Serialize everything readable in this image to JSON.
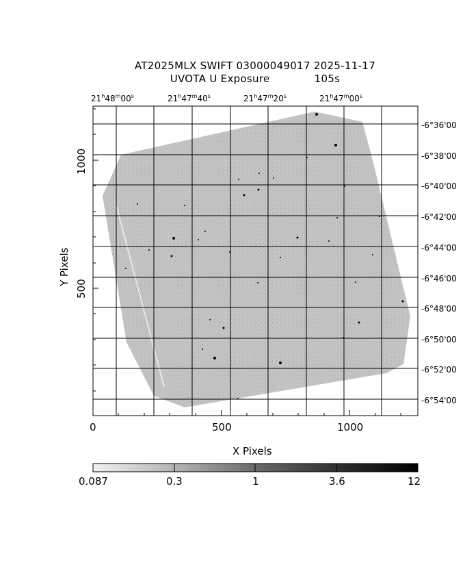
{
  "header": {
    "title": "AT2025MLX SWIFT 03000049017 2025-11-17",
    "subtitle": "UVOTA U Exposure",
    "exposure": "105s"
  },
  "axes": {
    "xlabel": "X Pixels",
    "ylabel": "Y Pixels",
    "x_ticks": [
      "0",
      "500",
      "1000"
    ],
    "y_ticks": [
      "500",
      "1000"
    ],
    "ra_ticks": [
      {
        "h": "21",
        "m": "48",
        "s": "00"
      },
      {
        "h": "21",
        "m": "47",
        "s": "40"
      },
      {
        "h": "21",
        "m": "47",
        "s": "20"
      },
      {
        "h": "21",
        "m": "47",
        "s": "00"
      }
    ],
    "dec_ticks": [
      "-6°36'00",
      "-6°38'00",
      "-6°40'00",
      "-6°42'00",
      "-6°44'00",
      "-6°46'00",
      "-6°48'00",
      "-6°50'00",
      "-6°52'00",
      "-6°54'00"
    ]
  },
  "colorbar": {
    "ticks": [
      "0.087",
      "0.3",
      "1",
      "3.6",
      "12"
    ]
  },
  "colors": {
    "frame": "#000000",
    "image_fill": "#c2c2c2",
    "image_noise": "#a9a9a9"
  }
}
